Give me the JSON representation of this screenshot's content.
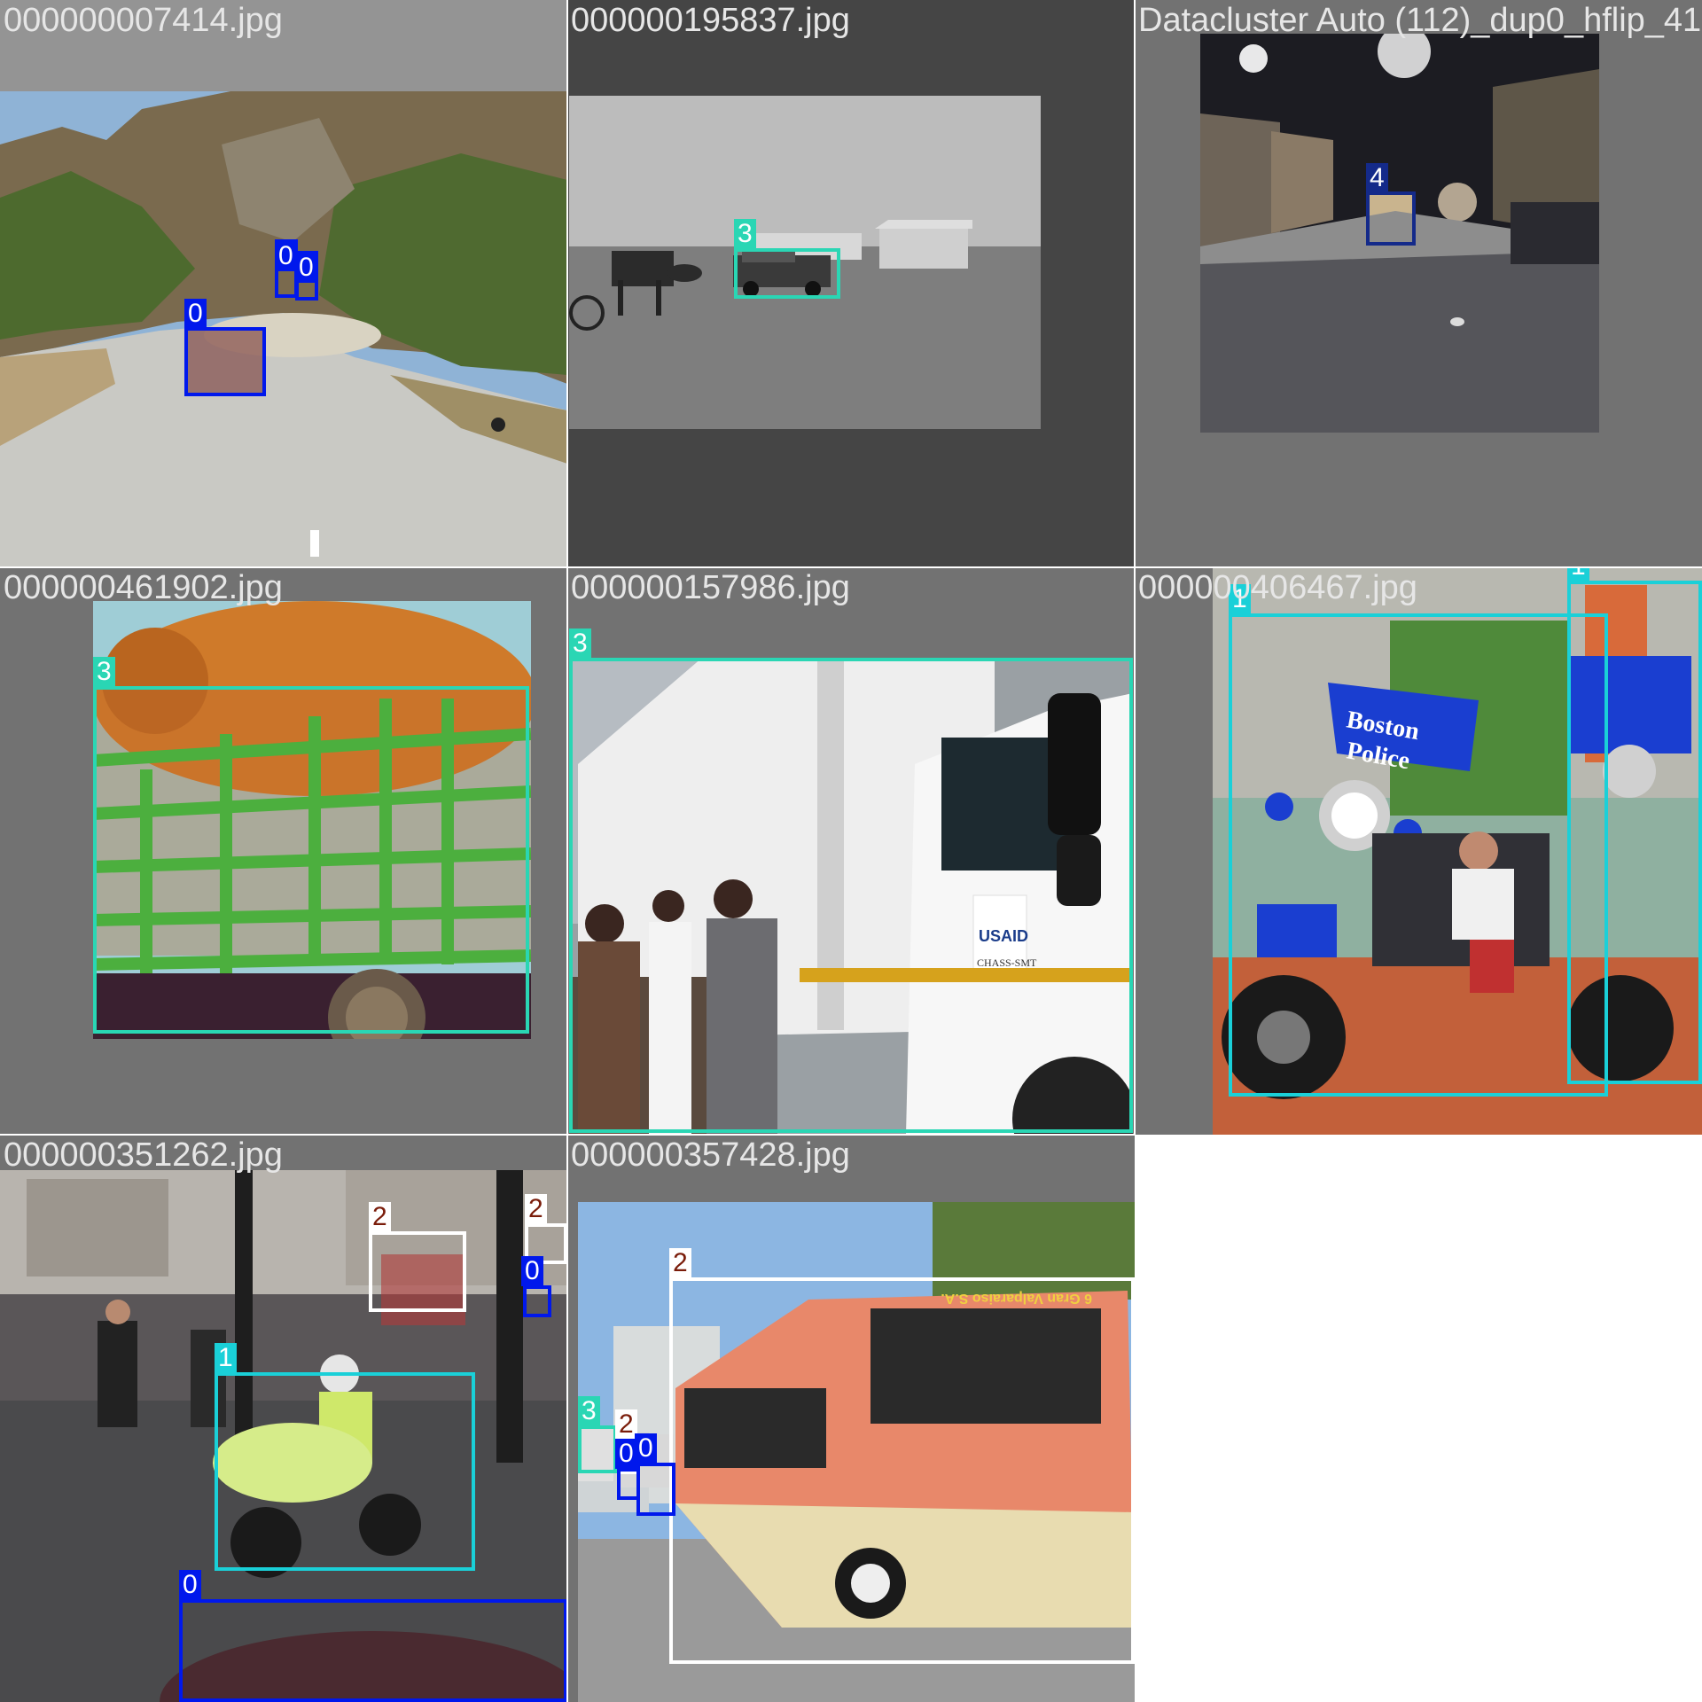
{
  "colors": {
    "class_0": "#0018ec",
    "class_1": "#1ad0d8",
    "class_2": "#ffffff",
    "class_2_text": "#7a1c0a",
    "class_3": "#2ad6b4",
    "class_4": "#142a8a"
  },
  "tiles": [
    {
      "filename": "000000007414.jpg",
      "labels": [
        "0",
        "0",
        "0"
      ]
    },
    {
      "filename": "000000195837.jpg",
      "labels": [
        "3"
      ]
    },
    {
      "filename": "Datacluster Auto (112)_dup0_hflip_41",
      "labels": [
        "4"
      ]
    },
    {
      "filename": "000000461902.jpg",
      "labels": [
        "3"
      ]
    },
    {
      "filename": "000000157986.jpg",
      "labels": [
        "3"
      ]
    },
    {
      "filename": "000000406467.jpg",
      "labels": [
        "1",
        "1"
      ]
    },
    {
      "filename": "000000351262.jpg",
      "labels": [
        "2",
        "2",
        "0",
        "1",
        "0"
      ]
    },
    {
      "filename": "000000357428.jpg",
      "labels": [
        "2",
        "3",
        "2",
        "0",
        "0"
      ]
    }
  ]
}
